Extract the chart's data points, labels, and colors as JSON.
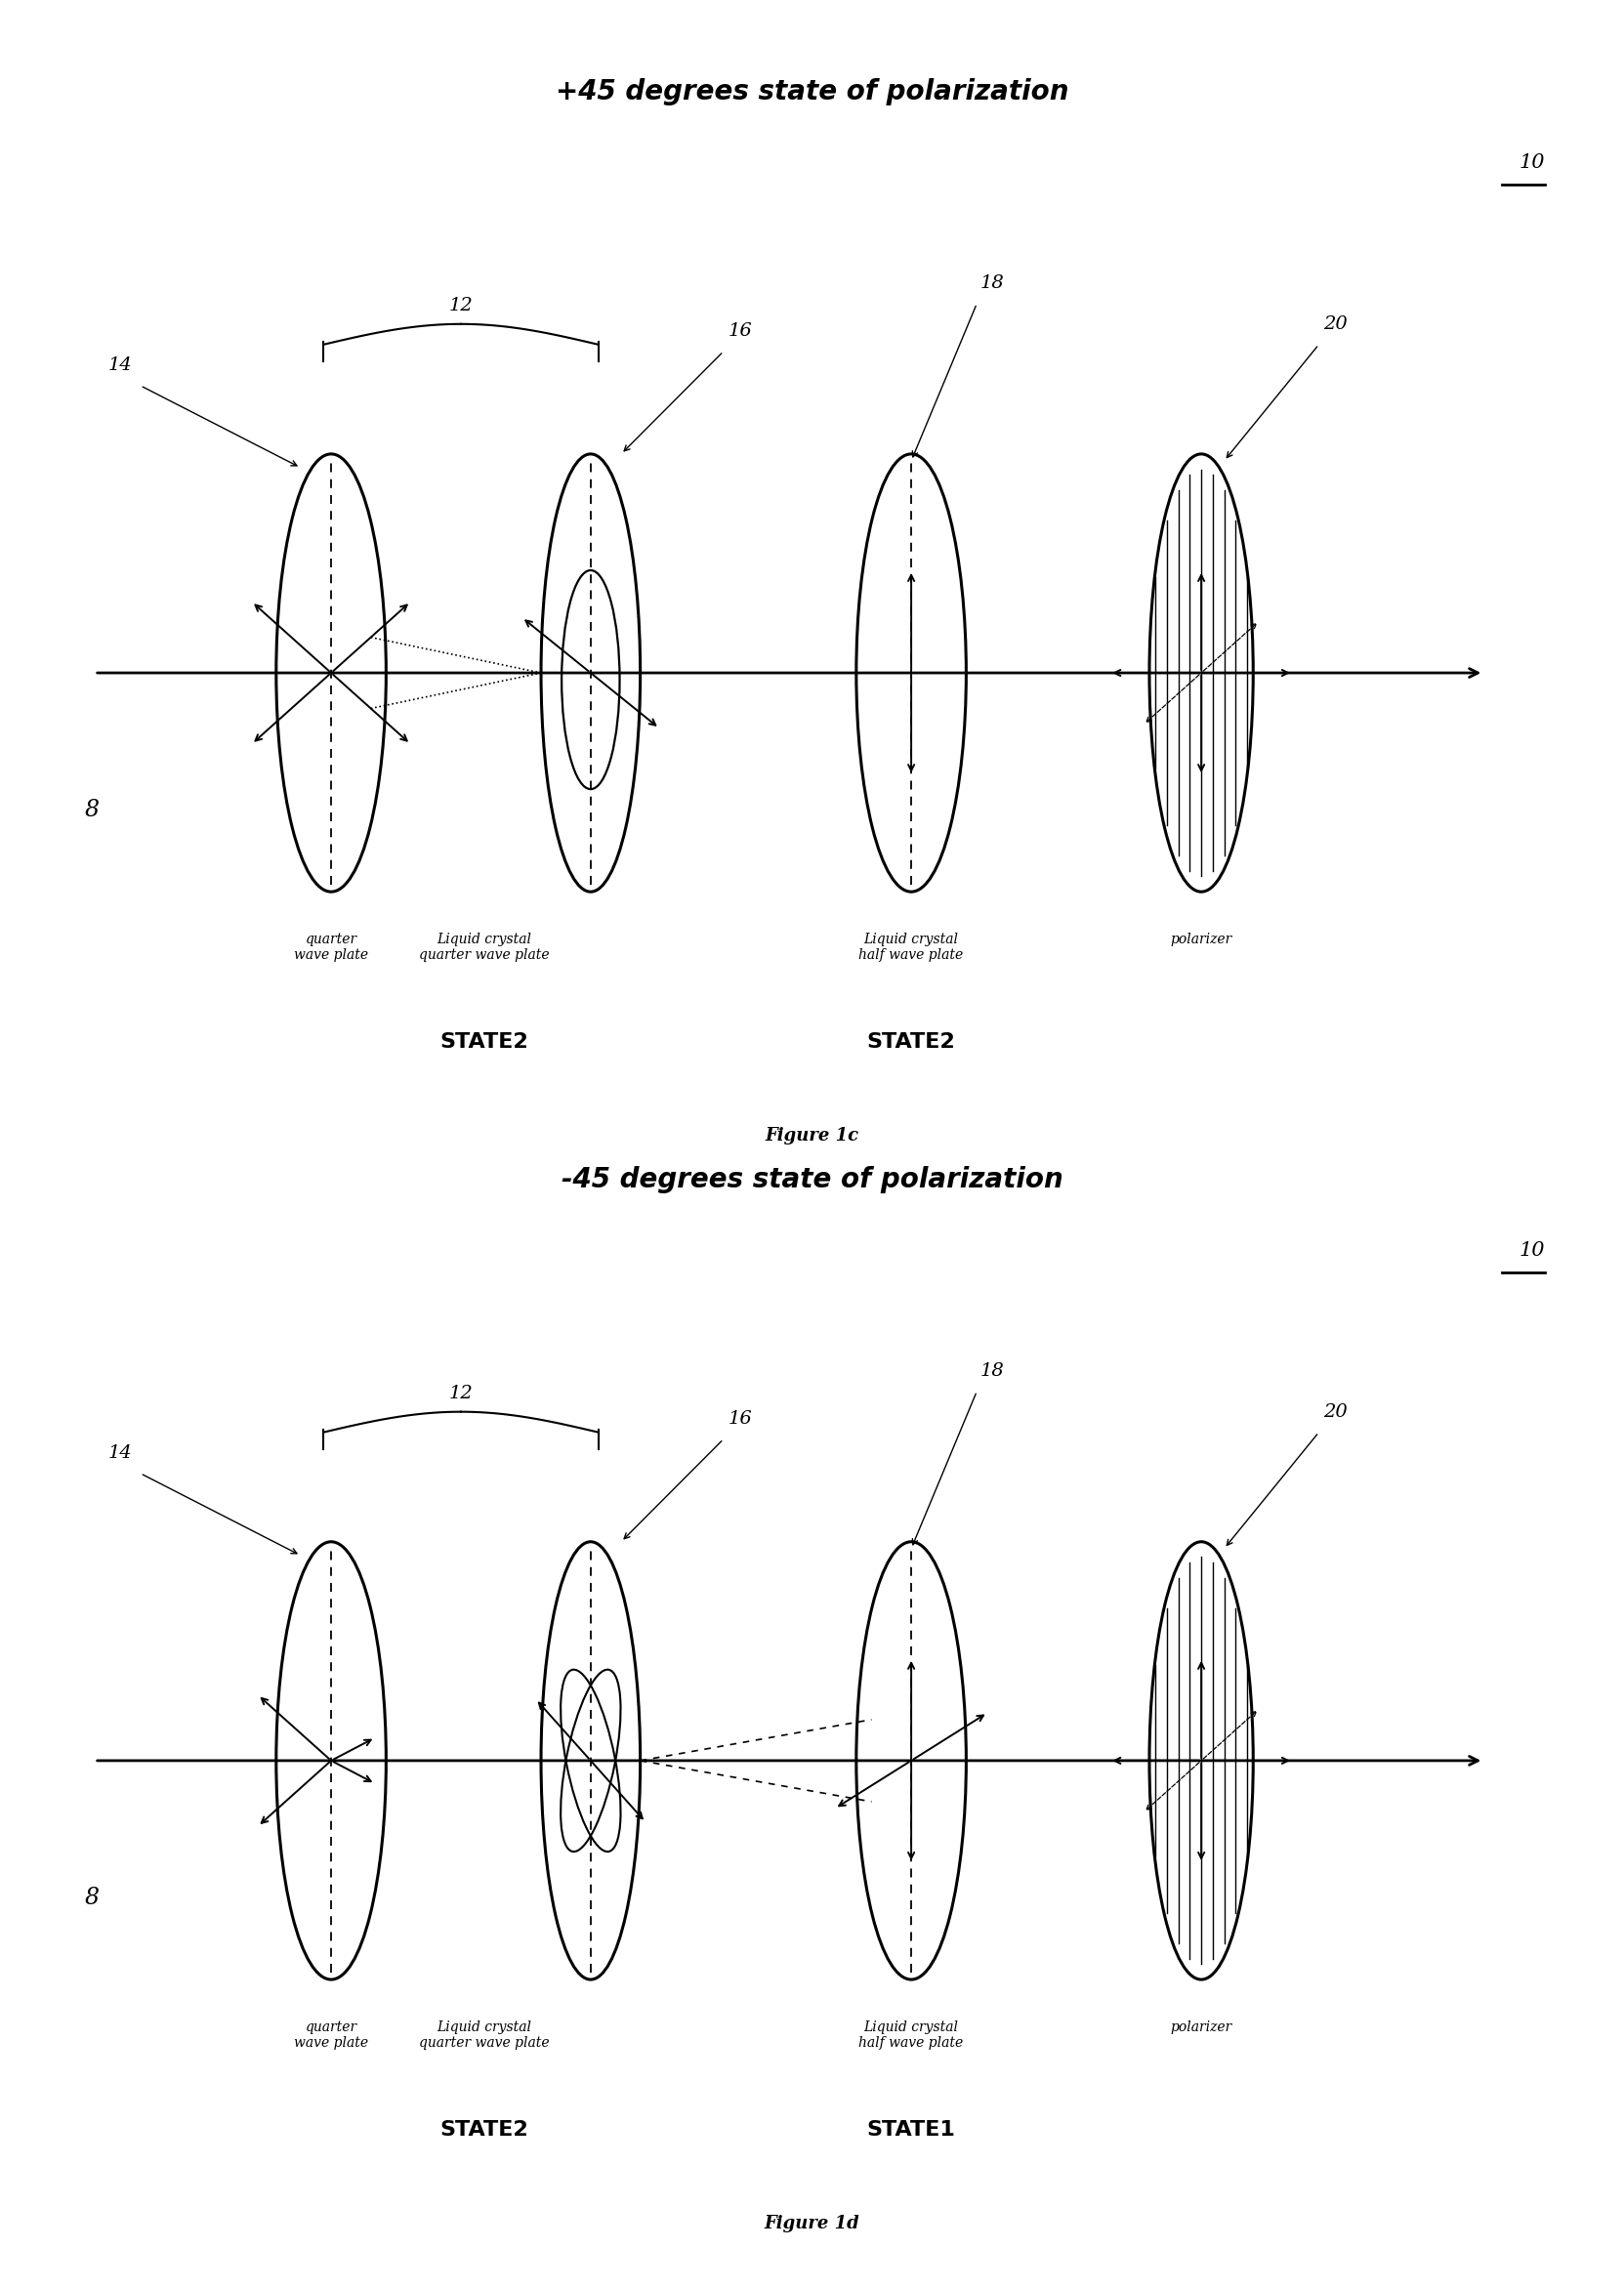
{
  "title1": "+45 degrees state of polarization",
  "title2": "-45 degrees state of polarization",
  "fig1_caption": "Figure 1c",
  "fig2_caption": "Figure 1d",
  "labels": {
    "qwp": "quarter\nwave plate",
    "lcqwp": "Liquid crystal\nquarter wave plate",
    "lchwp": "Liquid crystal\nhalf wave plate",
    "pol": "polarizer"
  },
  "states1": [
    "STATE2",
    "STATE2"
  ],
  "states2": [
    "STATE2",
    "STATE1"
  ],
  "bg_color": "#ffffff"
}
